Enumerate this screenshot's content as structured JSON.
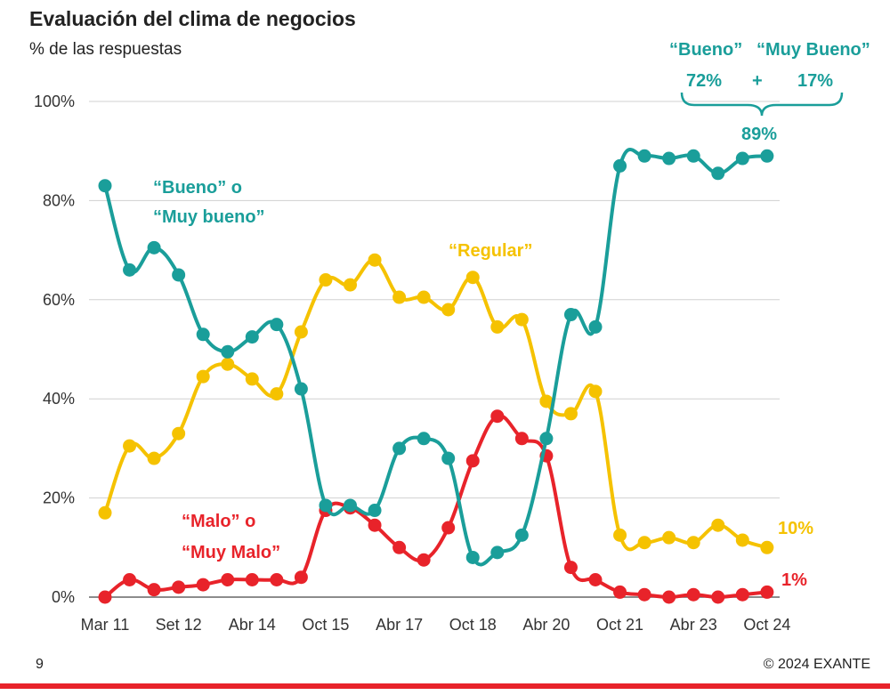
{
  "title": "Evaluación del clima de negocios",
  "subtitle": "% de las respuestas",
  "page_number": "9",
  "copyright": "© 2024 EXANTE",
  "colors": {
    "good": "#1a9e9a",
    "regular": "#f5c200",
    "bad": "#e8232a",
    "grid": "#d0d0d0",
    "axis": "#666666"
  },
  "annotations": {
    "good_label_1": "“Bueno” o",
    "good_label_2": "“Muy bueno”",
    "regular_label": "“Regular”",
    "bad_label_1": "“Malo” o",
    "bad_label_2": "“Muy Malo”",
    "bueno_header": "“Bueno”",
    "muy_bueno_header": "“Muy Bueno”",
    "bueno_value": "72%",
    "plus": "+",
    "muy_bueno_value": "17%",
    "total_value": "89%",
    "regular_end": "10%",
    "bad_end": "1%"
  },
  "chart_data": {
    "type": "line",
    "title": "Evaluación del clima de negocios",
    "ylabel": "% de las respuestas",
    "ylim": [
      0,
      100
    ],
    "yticks": [
      0,
      20,
      40,
      60,
      80,
      100
    ],
    "ytick_labels": [
      "0%",
      "20%",
      "40%",
      "60%",
      "80%",
      "100%"
    ],
    "x_tick_labels": [
      "Mar 11",
      "Set 12",
      "Abr 14",
      "Oct 15",
      "Abr 17",
      "Oct 18",
      "Abr 20",
      "Oct 21",
      "Abr 23",
      "Oct 24"
    ],
    "x_tick_index": [
      0,
      3,
      6,
      9,
      12,
      15,
      18,
      21,
      24,
      27
    ],
    "n_points": 28,
    "grid": true,
    "series": [
      {
        "name": "“Bueno” o “Muy bueno”",
        "color": "#1a9e9a",
        "values": [
          83,
          66,
          70.5,
          65,
          53,
          49.5,
          52.5,
          55,
          42,
          18.5,
          18.5,
          17.5,
          30,
          32,
          28,
          8,
          9,
          12.5,
          32,
          57,
          54.5,
          87,
          89,
          88.5,
          89,
          85.5,
          88.5,
          89
        ]
      },
      {
        "name": "“Regular”",
        "color": "#f5c200",
        "values": [
          17,
          30.5,
          28,
          33,
          44.5,
          47,
          44,
          41,
          53.5,
          64,
          63,
          68,
          60.5,
          60.5,
          58,
          64.5,
          54.5,
          56,
          39.5,
          37,
          41.5,
          12.5,
          11,
          12,
          11,
          14.5,
          11.5,
          10
        ]
      },
      {
        "name": "“Malo” o “Muy Malo”",
        "color": "#e8232a",
        "values": [
          0,
          3.5,
          1.5,
          2,
          2.5,
          3.5,
          3.5,
          3.5,
          4,
          17.5,
          18,
          14.5,
          10,
          7.5,
          14,
          27.5,
          36.5,
          32,
          28.5,
          6,
          3.5,
          1,
          0.5,
          0,
          0.5,
          0,
          0.5,
          1
        ]
      }
    ]
  }
}
